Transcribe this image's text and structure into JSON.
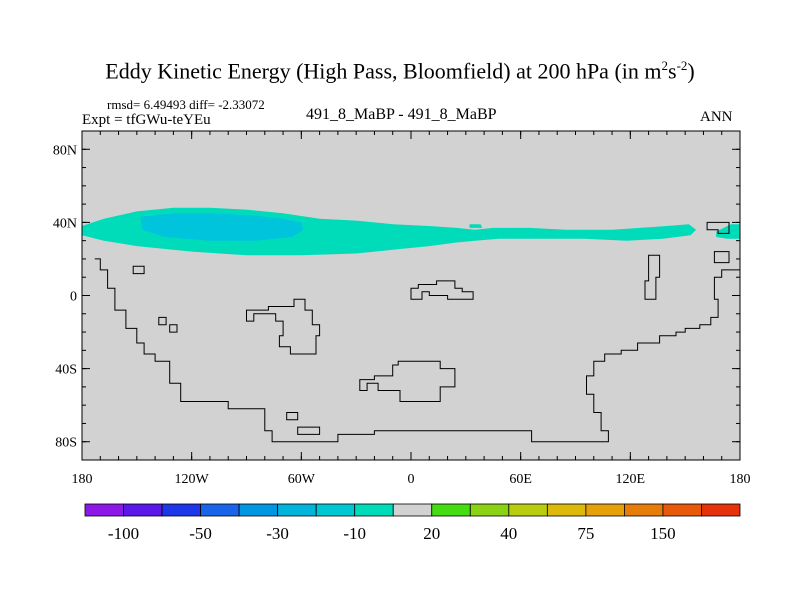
{
  "figure": {
    "title_main": "Eddy Kinetic Energy (High Pass, Bloomfield) at 200 hPa (in m",
    "title_sup1": "2",
    "title_mid": "s",
    "title_sup2": "-2",
    "title_end": ")",
    "stats_line": "rmsd= 6.49493 diff= -2.33072",
    "expt_line": "Expt = tfGWu-teYEu",
    "cases_line": "491_8_MaBP - 491_8_MaBP",
    "season": "ANN"
  },
  "map_data": {
    "projection": "cylindrical-equidistant",
    "lon_range": [
      -180,
      180
    ],
    "lat_range": [
      -90,
      90
    ],
    "lat_ticks": [
      {
        "value": 80,
        "label": "80N"
      },
      {
        "value": 40,
        "label": "40N"
      },
      {
        "value": 0,
        "label": "0"
      },
      {
        "value": -40,
        "label": "40S"
      },
      {
        "value": -80,
        "label": "80S"
      }
    ],
    "lon_ticks": [
      {
        "value": -180,
        "label": "180"
      },
      {
        "value": -120,
        "label": "120W"
      },
      {
        "value": -60,
        "label": "60W"
      },
      {
        "value": 0,
        "label": "0"
      },
      {
        "value": 60,
        "label": "60E"
      },
      {
        "value": 120,
        "label": "120E"
      },
      {
        "value": 180,
        "label": "180"
      }
    ],
    "background_color": "#d2d2d2",
    "field_regions": [
      {
        "name": "band-minus-10",
        "range": "-30 to -10",
        "color": "#00dcba",
        "lonlat": [
          [
            -180,
            33
          ],
          [
            -180,
            38
          ],
          [
            -168,
            42
          ],
          [
            -150,
            46
          ],
          [
            -130,
            48
          ],
          [
            -110,
            48
          ],
          [
            -90,
            47
          ],
          [
            -70,
            45
          ],
          [
            -50,
            42
          ],
          [
            -30,
            41
          ],
          [
            -10,
            39
          ],
          [
            10,
            38
          ],
          [
            25,
            37
          ],
          [
            35,
            36
          ],
          [
            45,
            37
          ],
          [
            65,
            37
          ],
          [
            85,
            36
          ],
          [
            110,
            36
          ],
          [
            125,
            37
          ],
          [
            140,
            38
          ],
          [
            152,
            39
          ],
          [
            156,
            36
          ],
          [
            153,
            33
          ],
          [
            138,
            31
          ],
          [
            118,
            30
          ],
          [
            95,
            31
          ],
          [
            70,
            31
          ],
          [
            48,
            31
          ],
          [
            35,
            30
          ],
          [
            25,
            29
          ],
          [
            10,
            27
          ],
          [
            -10,
            25
          ],
          [
            -30,
            23
          ],
          [
            -60,
            22
          ],
          [
            -90,
            22
          ],
          [
            -120,
            24
          ],
          [
            -150,
            27
          ],
          [
            -168,
            30
          ]
        ]
      },
      {
        "name": "band-minus-10-east",
        "range": "-30 to -10",
        "color": "#00dcba",
        "lonlat": [
          [
            167,
            35
          ],
          [
            175,
            39
          ],
          [
            180,
            39
          ],
          [
            180,
            31
          ],
          [
            173,
            31
          ],
          [
            167,
            32
          ]
        ]
      },
      {
        "name": "band-minus-10-patch",
        "range": "-30 to -10",
        "color": "#00dcba",
        "lonlat": [
          [
            32,
            39
          ],
          [
            38,
            39
          ],
          [
            39,
            37
          ],
          [
            32,
            37
          ]
        ]
      },
      {
        "name": "core-minus-30",
        "range": "-50 to -30",
        "color": "#00c4dc",
        "lonlat": [
          [
            -148,
            43
          ],
          [
            -130,
            45
          ],
          [
            -110,
            45
          ],
          [
            -88,
            44
          ],
          [
            -70,
            42
          ],
          [
            -60,
            40
          ],
          [
            -59,
            36
          ],
          [
            -65,
            32
          ],
          [
            -85,
            30
          ],
          [
            -110,
            30
          ],
          [
            -135,
            32
          ],
          [
            -147,
            36
          ]
        ]
      }
    ],
    "coastlines": [
      {
        "name": "americas-west-coast",
        "closed": false,
        "lonlat": [
          [
            -173,
            20
          ],
          [
            -170,
            20
          ],
          [
            -170,
            14
          ],
          [
            -166,
            14
          ],
          [
            -166,
            4
          ],
          [
            -162,
            4
          ],
          [
            -162,
            -8
          ],
          [
            -156,
            -8
          ],
          [
            -156,
            -18
          ],
          [
            -150,
            -18
          ],
          [
            -150,
            -26
          ],
          [
            -146,
            -26
          ],
          [
            -146,
            -32
          ],
          [
            -140,
            -32
          ],
          [
            -140,
            -36
          ],
          [
            -132,
            -36
          ],
          [
            -132,
            -48
          ],
          [
            -126,
            -48
          ],
          [
            -126,
            -58
          ],
          [
            -100,
            -58
          ],
          [
            -100,
            -62
          ],
          [
            -80,
            -62
          ],
          [
            -80,
            -74
          ],
          [
            -76,
            -74
          ],
          [
            -76,
            -80
          ],
          [
            -40,
            -80
          ],
          [
            -40,
            -76
          ],
          [
            -20,
            -76
          ],
          [
            -20,
            -74
          ],
          [
            66,
            -74
          ],
          [
            66,
            -80
          ],
          [
            108,
            -80
          ],
          [
            108,
            -74
          ],
          [
            104,
            -74
          ],
          [
            104,
            -64
          ],
          [
            100,
            -64
          ],
          [
            100,
            -54
          ],
          [
            96,
            -54
          ],
          [
            96,
            -44
          ],
          [
            100,
            -44
          ],
          [
            100,
            -36
          ],
          [
            106,
            -36
          ],
          [
            106,
            -32
          ],
          [
            115,
            -32
          ],
          [
            115,
            -30
          ],
          [
            124,
            -30
          ],
          [
            124,
            -26
          ],
          [
            136,
            -26
          ],
          [
            136,
            -22
          ],
          [
            145,
            -22
          ],
          [
            145,
            -20
          ],
          [
            150,
            -20
          ],
          [
            150,
            -18
          ],
          [
            158,
            -18
          ],
          [
            158,
            -16
          ],
          [
            164,
            -16
          ],
          [
            164,
            -12
          ],
          [
            168,
            -12
          ],
          [
            168,
            -2
          ],
          [
            166,
            -2
          ],
          [
            166,
            10
          ],
          [
            170,
            10
          ],
          [
            170,
            14
          ],
          [
            180,
            14
          ]
        ]
      },
      {
        "name": "east-coast-islands",
        "closed": true,
        "lonlat": [
          [
            166,
            24
          ],
          [
            166,
            18
          ],
          [
            174,
            18
          ],
          [
            174,
            24
          ]
        ]
      },
      {
        "name": "island-pacific-1",
        "closed": true,
        "lonlat": [
          [
            -152,
            16
          ],
          [
            -146,
            16
          ],
          [
            -146,
            12
          ],
          [
            -152,
            12
          ]
        ]
      },
      {
        "name": "island-pacific-2",
        "closed": true,
        "lonlat": [
          [
            -138,
            -12
          ],
          [
            -134,
            -12
          ],
          [
            -134,
            -16
          ],
          [
            -138,
            -16
          ]
        ]
      },
      {
        "name": "island-pacific-3",
        "closed": true,
        "lonlat": [
          [
            -132,
            -16
          ],
          [
            -128,
            -16
          ],
          [
            -128,
            -20
          ],
          [
            -132,
            -20
          ]
        ]
      },
      {
        "name": "central-landmass",
        "closed": true,
        "lonlat": [
          [
            -72,
            -6
          ],
          [
            -64,
            -6
          ],
          [
            -64,
            -2
          ],
          [
            -58,
            -2
          ],
          [
            -58,
            -8
          ],
          [
            -54,
            -8
          ],
          [
            -54,
            -16
          ],
          [
            -50,
            -16
          ],
          [
            -50,
            -22
          ],
          [
            -52,
            -22
          ],
          [
            -52,
            -32
          ],
          [
            -66,
            -32
          ],
          [
            -66,
            -28
          ],
          [
            -72,
            -28
          ],
          [
            -72,
            -22
          ],
          [
            -70,
            -22
          ],
          [
            -70,
            -14
          ],
          [
            -74,
            -14
          ],
          [
            -74,
            -10
          ],
          [
            -86,
            -10
          ],
          [
            -86,
            -14
          ],
          [
            -90,
            -14
          ],
          [
            -90,
            -8
          ],
          [
            -78,
            -8
          ],
          [
            -78,
            -6
          ]
        ]
      },
      {
        "name": "south-island",
        "closed": true,
        "lonlat": [
          [
            -7,
            -36
          ],
          [
            16,
            -36
          ],
          [
            16,
            -40
          ],
          [
            24,
            -40
          ],
          [
            24,
            -50
          ],
          [
            16,
            -50
          ],
          [
            16,
            -58
          ],
          [
            -6,
            -58
          ],
          [
            -6,
            -52
          ],
          [
            -18,
            -52
          ],
          [
            -18,
            -48
          ],
          [
            -24,
            -48
          ],
          [
            -24,
            -52
          ],
          [
            -28,
            -52
          ],
          [
            -28,
            -46
          ],
          [
            -20,
            -46
          ],
          [
            -20,
            -44
          ],
          [
            -10,
            -44
          ],
          [
            -10,
            -38
          ],
          [
            -7,
            -38
          ]
        ]
      },
      {
        "name": "southern-small-1",
        "closed": true,
        "lonlat": [
          [
            -68,
            -64
          ],
          [
            -62,
            -64
          ],
          [
            -62,
            -68
          ],
          [
            -68,
            -68
          ]
        ]
      },
      {
        "name": "southern-small-2",
        "closed": true,
        "lonlat": [
          [
            -62,
            -72
          ],
          [
            -50,
            -72
          ],
          [
            -50,
            -76
          ],
          [
            -62,
            -76
          ]
        ]
      },
      {
        "name": "northern-strip",
        "closed": true,
        "lonlat": [
          [
            0,
            4
          ],
          [
            4,
            4
          ],
          [
            4,
            6
          ],
          [
            14,
            6
          ],
          [
            14,
            8
          ],
          [
            24,
            8
          ],
          [
            24,
            4
          ],
          [
            28,
            4
          ],
          [
            28,
            2
          ],
          [
            34,
            2
          ],
          [
            34,
            -2
          ],
          [
            20,
            -2
          ],
          [
            20,
            0
          ],
          [
            10,
            0
          ],
          [
            10,
            2
          ],
          [
            6,
            2
          ],
          [
            6,
            -2
          ],
          [
            0,
            -2
          ]
        ]
      },
      {
        "name": "east-narrow-island",
        "closed": true,
        "lonlat": [
          [
            130,
            22
          ],
          [
            136,
            22
          ],
          [
            136,
            10
          ],
          [
            134,
            10
          ],
          [
            134,
            -2
          ],
          [
            128,
            -2
          ],
          [
            128,
            8
          ],
          [
            130,
            8
          ]
        ]
      },
      {
        "name": "east-small-1",
        "closed": true,
        "lonlat": [
          [
            162,
            40
          ],
          [
            174,
            40
          ],
          [
            174,
            34
          ],
          [
            168,
            34
          ],
          [
            168,
            36
          ],
          [
            162,
            36
          ]
        ]
      }
    ]
  },
  "colorbar": {
    "labels": [
      "-100",
      "-50",
      "-30",
      "-10",
      "20",
      "40",
      "75",
      "150"
    ],
    "boxes": [
      {
        "color": "#8c19e8"
      },
      {
        "color": "#5a19e8"
      },
      {
        "color": "#1e37e8"
      },
      {
        "color": "#1964e8"
      },
      {
        "color": "#0096e1"
      },
      {
        "color": "#00b4dc"
      },
      {
        "color": "#00c8d2"
      },
      {
        "color": "#00dcba"
      },
      {
        "color": "#d2d2d2"
      },
      {
        "color": "#46dc14"
      },
      {
        "color": "#8cd214"
      },
      {
        "color": "#b9cd0f"
      },
      {
        "color": "#dcb90a"
      },
      {
        "color": "#e6a00a"
      },
      {
        "color": "#e67d0a"
      },
      {
        "color": "#e65a0a"
      },
      {
        "color": "#e6320a"
      }
    ]
  }
}
